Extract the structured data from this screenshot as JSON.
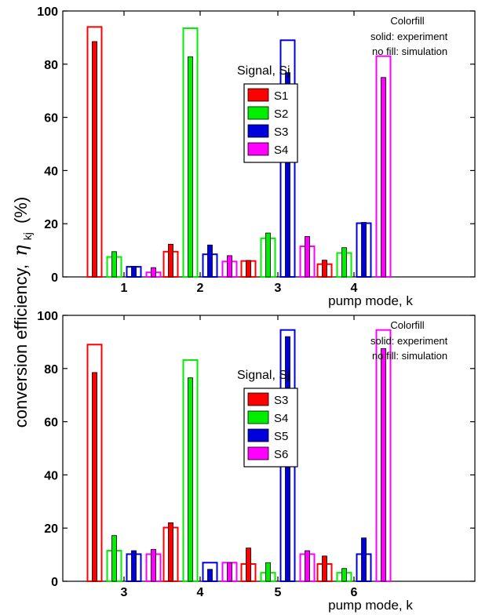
{
  "ylabel": {
    "prefix": "conversion efficiency,",
    "symbol": "η",
    "subscript": "kj",
    "unit": "(%)"
  },
  "chart_data": [
    {
      "type": "bar",
      "xlabel": "pump mode, k",
      "ylim": [
        0,
        100
      ],
      "yticks": [
        0,
        20,
        40,
        60,
        80,
        100
      ],
      "categories": [
        "1",
        "2",
        "3",
        "4"
      ],
      "note": {
        "title": "Colorfill",
        "line1": "solid: experiment",
        "line2": "no fill: simulation"
      },
      "legend_title": "Signal, Sj",
      "series": [
        {
          "name": "S1",
          "color": "#ff0000",
          "simulation": [
            94,
            9.5,
            6,
            4.8
          ],
          "experiment": [
            88.5,
            12.3,
            6.2,
            6.3
          ]
        },
        {
          "name": "S2",
          "color": "#00ee00",
          "simulation": [
            7.5,
            93.5,
            14.5,
            9
          ],
          "experiment": [
            9.5,
            82.8,
            16.5,
            11
          ]
        },
        {
          "name": "S3",
          "color": "#0000dd",
          "simulation": [
            3.8,
            8.5,
            89,
            20.2
          ],
          "experiment": [
            4,
            12,
            76.8,
            20.5
          ]
        },
        {
          "name": "S4",
          "color": "#ff00ff",
          "simulation": [
            1.7,
            5.8,
            11.5,
            83
          ],
          "experiment": [
            3.5,
            8,
            15.2,
            75
          ]
        }
      ]
    },
    {
      "type": "bar",
      "xlabel": "pump mode, k",
      "ylim": [
        0,
        100
      ],
      "yticks": [
        0,
        20,
        40,
        60,
        80,
        100
      ],
      "categories": [
        "3",
        "4",
        "5",
        "6"
      ],
      "note": {
        "title": "Colorfill",
        "line1": "solid: experiment",
        "line2": "no fill: simulation"
      },
      "legend_title": "Signal, Sj",
      "series": [
        {
          "name": "S3",
          "color": "#ff0000",
          "simulation": [
            89,
            20.2,
            6.5,
            6.5
          ],
          "experiment": [
            78.5,
            22,
            12.5,
            9.5
          ]
        },
        {
          "name": "S4",
          "color": "#00ee00",
          "simulation": [
            11.5,
            83.2,
            3.2,
            3.2
          ],
          "experiment": [
            17.2,
            76.5,
            7,
            4.8
          ]
        },
        {
          "name": "S5",
          "color": "#0000dd",
          "simulation": [
            10.2,
            7,
            94.5,
            10.2
          ],
          "experiment": [
            11.5,
            4.5,
            92,
            16.3
          ]
        },
        {
          "name": "S6",
          "color": "#ff00ff",
          "simulation": [
            10.2,
            7,
            10.2,
            94.5
          ],
          "experiment": [
            12,
            7,
            11.5,
            87.5
          ]
        }
      ]
    }
  ]
}
